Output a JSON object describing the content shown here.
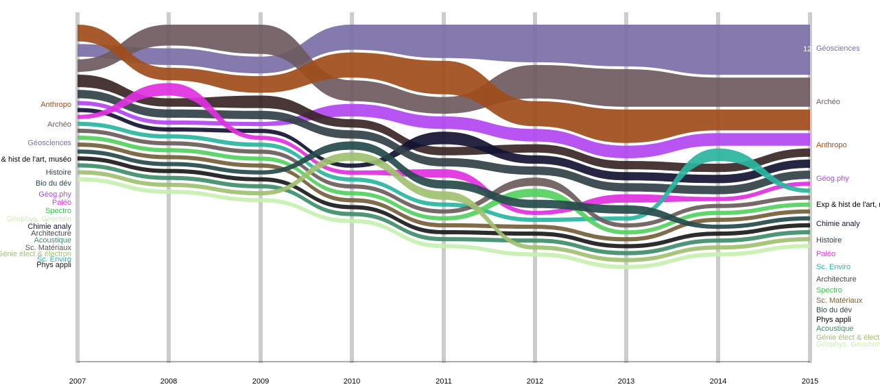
{
  "chart_data": {
    "type": "area",
    "subtype": "bump-stream",
    "x": [
      "2007",
      "2008",
      "2009",
      "2010",
      "2011",
      "2012",
      "2013",
      "2014",
      "2015"
    ],
    "series": [
      {
        "name": "Géosciences",
        "color": "#7b6fa6",
        "values": [
          3,
          4,
          4,
          6,
          8,
          9,
          10,
          12,
          12
        ]
      },
      {
        "name": "Archéo",
        "color": "#6e5a60",
        "values": [
          3,
          5,
          7,
          5,
          4,
          8,
          9,
          7,
          7
        ]
      },
      {
        "name": "Anthropo",
        "color": "#a04d1a",
        "values": [
          4,
          3,
          4,
          6,
          8,
          6,
          8,
          5,
          5
        ]
      },
      {
        "name": "Géog.phy",
        "color": "#b245f0",
        "values": [
          1,
          1,
          1,
          3,
          3,
          3,
          3,
          3,
          3
        ]
      },
      {
        "name": "Exp & hist de l'art, muséo",
        "color": "#3a2525",
        "values": [
          3,
          2,
          3,
          2,
          2,
          2,
          2,
          2,
          2
        ]
      },
      {
        "name": "Chimie analy",
        "color": "#141432",
        "values": [
          1,
          1,
          1,
          1,
          3,
          2,
          2,
          2,
          2
        ]
      },
      {
        "name": "Histoire",
        "color": "#324146",
        "values": [
          2,
          2,
          2,
          2,
          2,
          2,
          2,
          2,
          2
        ]
      },
      {
        "name": "Paléo",
        "color": "#e030e0",
        "values": [
          1,
          3,
          1,
          1,
          2,
          1,
          2,
          1,
          1
        ]
      },
      {
        "name": "Sc. Enviro",
        "color": "#2ab5a0",
        "values": [
          1,
          1,
          1,
          1,
          1,
          1,
          1,
          3,
          1
        ]
      },
      {
        "name": "Architecture",
        "color": "#6a5c5a",
        "values": [
          1,
          1,
          1,
          1,
          1,
          2,
          1,
          1,
          1
        ]
      },
      {
        "name": "Spectro",
        "color": "#55d060",
        "values": [
          1,
          1,
          1,
          1,
          1,
          2,
          1,
          1,
          1
        ]
      },
      {
        "name": "Sc. Matériaux",
        "color": "#74603a",
        "values": [
          1,
          1,
          1,
          1,
          1,
          1,
          1,
          1,
          1
        ]
      },
      {
        "name": "Bio du dév",
        "color": "#264a4a",
        "values": [
          1,
          1,
          1,
          2,
          2,
          2,
          2,
          1,
          1
        ]
      },
      {
        "name": "Phys appli",
        "color": "#1a1a1a",
        "values": [
          1,
          1,
          1,
          1,
          1,
          1,
          1,
          1,
          1
        ]
      },
      {
        "name": "Acoustique",
        "color": "#3f8e6a",
        "values": [
          1,
          1,
          1,
          1,
          1,
          1,
          1,
          1,
          1
        ]
      },
      {
        "name": "Génie élect & électron",
        "color": "#a0c070",
        "values": [
          1,
          1,
          1,
          2,
          2,
          1,
          1,
          1,
          1
        ]
      },
      {
        "name": "Géophys. Géochim",
        "color": "#c8f0b0",
        "values": [
          1,
          1,
          1,
          1,
          1,
          1,
          1,
          1,
          1
        ]
      }
    ],
    "left_labels": [
      {
        "text": "Anthropo",
        "color": "#a04d1a"
      },
      {
        "text": "Archéo",
        "color": "#6e5a60"
      },
      {
        "text": "Géosciences",
        "color": "#7b6fa6"
      },
      {
        "text": "Exp & hist de l'art, muséo",
        "color": "#000000"
      },
      {
        "text": "Histoire",
        "color": "#324146"
      },
      {
        "text": "Bio du dév",
        "color": "#264a4a"
      },
      {
        "text": "Géog.phy",
        "color": "#b245f0"
      },
      {
        "text": "Paléo",
        "color": "#e030e0"
      },
      {
        "text": "Spectro",
        "color": "#3fc050"
      },
      {
        "text": "Géophys. Géochim",
        "color": "#c8f0b0"
      },
      {
        "text": "Chimie analy",
        "color": "#141432"
      },
      {
        "text": "Architecture",
        "color": "#444444"
      },
      {
        "text": "Acoustique",
        "color": "#3f8e6a"
      },
      {
        "text": "Sc. Matériaux",
        "color": "#555555"
      },
      {
        "text": "Génie élect & électron",
        "color": "#a0c070"
      },
      {
        "text": "Sc. Enviro",
        "color": "#2ab5a0"
      },
      {
        "text": "Phys appli",
        "color": "#1a1a1a"
      }
    ],
    "right_labels": [
      {
        "text": "Géosciences",
        "color": "#7b6fa6"
      },
      {
        "text": "Archéo",
        "color": "#6e5a60"
      },
      {
        "text": "Anthropo",
        "color": "#a04d1a"
      },
      {
        "text": "Géog.phy",
        "color": "#b245f0"
      },
      {
        "text": "Exp & hist de l'art, muséo",
        "color": "#000000"
      },
      {
        "text": "Chimie analy",
        "color": "#141432"
      },
      {
        "text": "Histoire",
        "color": "#324146"
      },
      {
        "text": "Paléo",
        "color": "#e030e0"
      },
      {
        "text": "Sc. Enviro",
        "color": "#2ab5a0"
      },
      {
        "text": "Architecture",
        "color": "#444444"
      },
      {
        "text": "Spectro",
        "color": "#3fc050"
      },
      {
        "text": "Sc. Matériaux",
        "color": "#74603a"
      },
      {
        "text": "Bio du dév",
        "color": "#264a4a"
      },
      {
        "text": "Phys appli",
        "color": "#000000"
      },
      {
        "text": "Acoustique",
        "color": "#3f8e6a"
      },
      {
        "text": "Génie élect & électron",
        "color": "#a0c070"
      },
      {
        "text": "Géophys. Géochim",
        "color": "#c8f0b0"
      }
    ],
    "annotation": "12",
    "grid": true,
    "colors": {
      "axis_bar": "#cccccc",
      "background": "#ffffff"
    }
  }
}
